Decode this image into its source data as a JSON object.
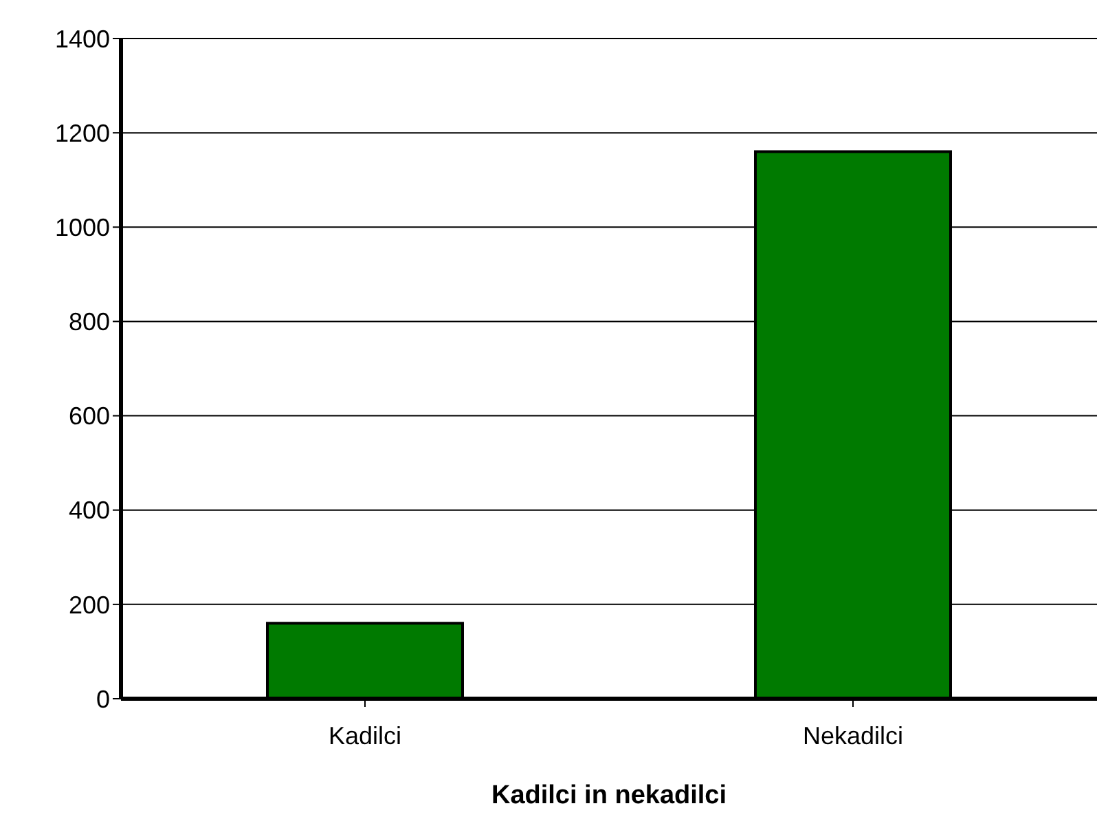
{
  "chart_data": {
    "type": "bar",
    "xlabel": "Kadilci in nekadilci",
    "categories": [
      "Kadilci",
      "Nekadilci"
    ],
    "values": [
      160,
      1160
    ],
    "color": "#007a00",
    "ylim": [
      0,
      1400
    ],
    "yticks": [
      0,
      200,
      400,
      600,
      800,
      1000,
      1200,
      1400
    ],
    "grid": "y"
  }
}
